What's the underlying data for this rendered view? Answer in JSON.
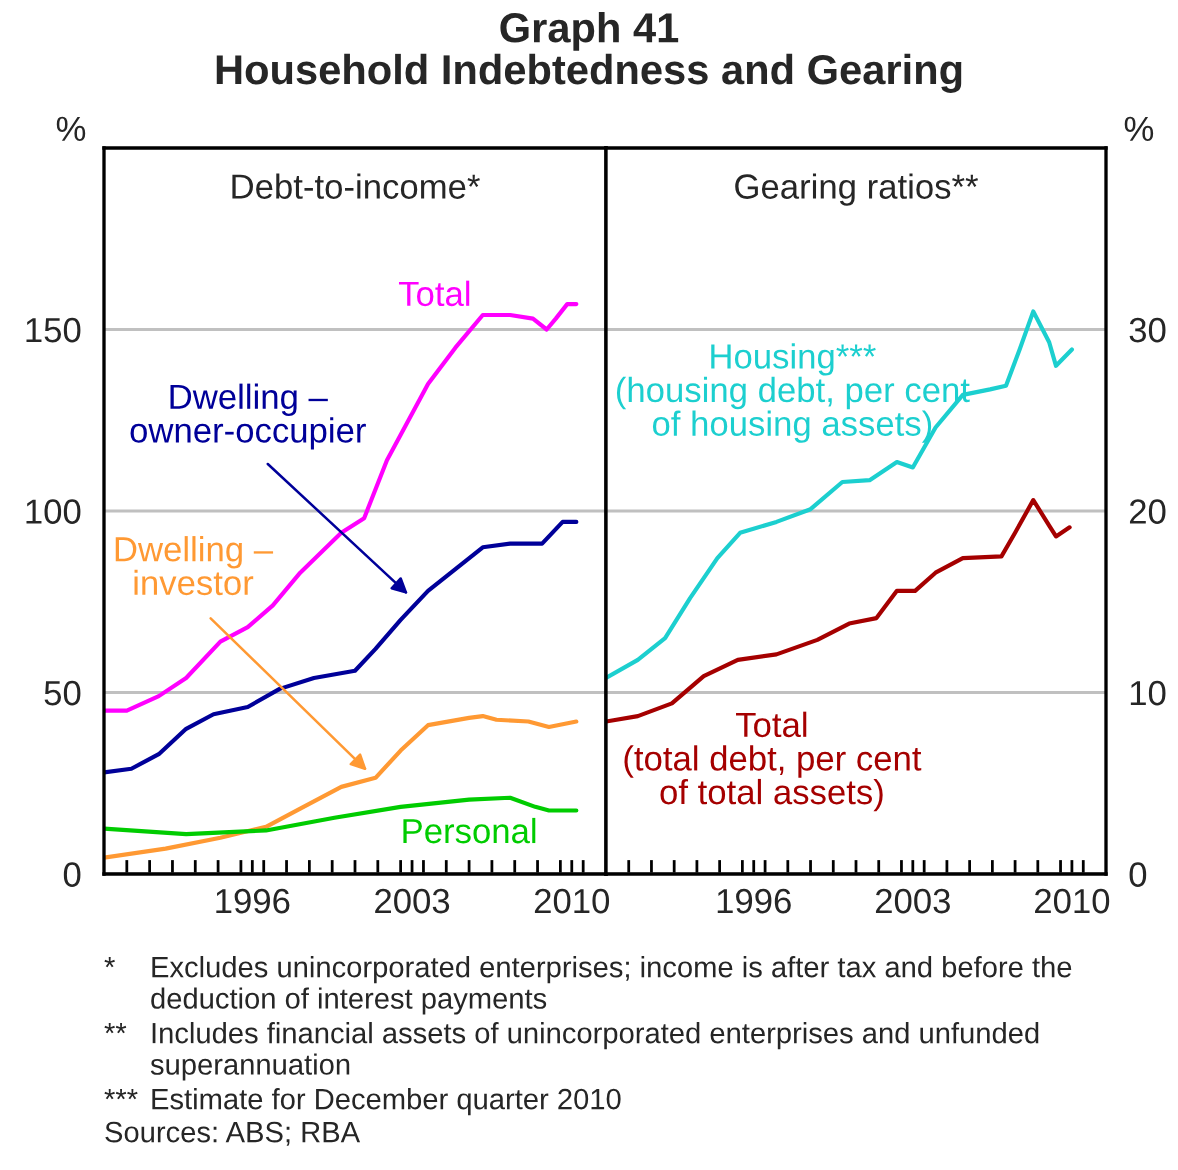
{
  "chart_data": [
    {
      "type": "line",
      "title": "Graph 41\nHousehold Indebtedness and Gearing",
      "subtitle": "Debt-to-income*",
      "ylabel": "%",
      "xlim": [
        1990,
        2012
      ],
      "ylim": [
        0,
        200
      ],
      "yticks": [
        0,
        50,
        100,
        150
      ],
      "xticks": [
        {
          "value": 1991,
          "label": null
        },
        {
          "value": 1992,
          "label": null
        },
        {
          "value": 1993,
          "label": null
        },
        {
          "value": 1994,
          "label": null
        },
        {
          "value": 1995,
          "label": null
        },
        {
          "value": 1996,
          "label": null
        },
        {
          "value": 1997,
          "label": null
        },
        {
          "value": 1998,
          "label": null
        },
        {
          "value": 1999,
          "label": null
        },
        {
          "value": 2000,
          "label": null
        },
        {
          "value": 2001,
          "label": null
        },
        {
          "value": 2002,
          "label": null
        },
        {
          "value": 2003,
          "label": null
        },
        {
          "value": 2004,
          "label": null
        },
        {
          "value": 2005,
          "label": null
        },
        {
          "value": 2006,
          "label": null
        },
        {
          "value": 2007,
          "label": null
        },
        {
          "value": 2008,
          "label": null
        },
        {
          "value": 2009,
          "label": null
        },
        {
          "value": 2010,
          "label": null
        },
        {
          "value": 2011,
          "label": null
        },
        {
          "value": 1996.5,
          "label": "1996"
        },
        {
          "value": 2003.5,
          "label": "2003"
        },
        {
          "value": 2010.5,
          "label": "2010"
        }
      ],
      "grid": "y",
      "legend": false,
      "marker": "none",
      "line_style": "solid",
      "series": [
        {
          "name": "Total",
          "color": "#ff00ff",
          "x": [
            1990.0,
            1991.0,
            1992.4,
            1993.6,
            1995.1,
            1996.3,
            1997.4,
            1998.6,
            2000.4,
            2001.4,
            2002.4,
            2004.2,
            2005.4,
            2006.6,
            2007.8,
            2008.8,
            2009.4,
            2009.8,
            2010.3,
            2010.7
          ],
          "values": [
            45,
            45,
            49,
            54,
            64,
            68,
            74,
            83,
            94,
            98,
            114,
            135,
            145,
            154,
            154,
            153,
            150,
            153,
            157,
            157
          ]
        },
        {
          "name": "Dwelling –\nowner-occupier",
          "color": "#000099",
          "x": [
            1990.0,
            1991.2,
            1992.4,
            1993.6,
            1994.8,
            1996.3,
            1997.7,
            1999.2,
            2001.0,
            2001.9,
            2003.0,
            2004.2,
            2005.4,
            2006.6,
            2007.8,
            2008.8,
            2009.2,
            2010.1,
            2010.7
          ],
          "values": [
            28,
            29,
            33,
            40,
            44,
            46,
            51,
            54,
            56,
            62,
            70,
            78,
            84,
            90,
            91,
            91,
            91,
            97,
            97
          ]
        },
        {
          "name": "Dwelling –\ninvestor",
          "color": "#ff9933",
          "x": [
            1990.0,
            1992.7,
            1995.1,
            1997.1,
            1998.6,
            2000.4,
            2001.9,
            2003.0,
            2004.2,
            2006.0,
            2006.6,
            2007.2,
            2008.6,
            2009.5,
            2010.7
          ],
          "values": [
            4.5,
            7,
            10,
            13,
            18,
            24,
            26.5,
            34,
            41,
            43,
            43.5,
            42.5,
            42,
            40.5,
            42
          ]
        },
        {
          "name": "Personal",
          "color": "#00cc00",
          "x": [
            1990.0,
            1993.6,
            1997.1,
            2000.1,
            2003.0,
            2006.0,
            2007.8,
            2008.9,
            2009.5,
            2010.7
          ],
          "values": [
            12.5,
            11,
            12,
            15.5,
            18.5,
            20.5,
            21,
            18.5,
            17.5,
            17.5
          ]
        }
      ]
    },
    {
      "type": "line",
      "subtitle": "Gearing ratios**",
      "ylabel": "%",
      "xlim": [
        1990,
        2012
      ],
      "ylim": [
        0,
        40
      ],
      "yticks": [
        0,
        10,
        20,
        30
      ],
      "xticks": [
        {
          "value": 1991,
          "label": null
        },
        {
          "value": 1992,
          "label": null
        },
        {
          "value": 1993,
          "label": null
        },
        {
          "value": 1994,
          "label": null
        },
        {
          "value": 1995,
          "label": null
        },
        {
          "value": 1996,
          "label": null
        },
        {
          "value": 1997,
          "label": null
        },
        {
          "value": 1998,
          "label": null
        },
        {
          "value": 1999,
          "label": null
        },
        {
          "value": 2000,
          "label": null
        },
        {
          "value": 2001,
          "label": null
        },
        {
          "value": 2002,
          "label": null
        },
        {
          "value": 2003,
          "label": null
        },
        {
          "value": 2004,
          "label": null
        },
        {
          "value": 2005,
          "label": null
        },
        {
          "value": 2006,
          "label": null
        },
        {
          "value": 2007,
          "label": null
        },
        {
          "value": 2008,
          "label": null
        },
        {
          "value": 2009,
          "label": null
        },
        {
          "value": 2010,
          "label": null
        },
        {
          "value": 2011,
          "label": null
        },
        {
          "value": 1996.5,
          "label": "1996"
        },
        {
          "value": 2003.5,
          "label": "2003"
        },
        {
          "value": 2010.5,
          "label": "2010"
        }
      ],
      "grid": "y",
      "legend": false,
      "marker": "none",
      "line_style": "solid",
      "series": [
        {
          "name": "Housing***\n(housing debt, per cent\nof housing assets)",
          "color": "#1ccfcf",
          "x": [
            1990.0,
            1991.4,
            1992.6,
            1993.7,
            1994.9,
            1995.9,
            1997.5,
            1999.0,
            2000.4,
            2001.6,
            2002.8,
            2003.5,
            2004.5,
            2005.7,
            2006.9,
            2007.6,
            2008.2,
            2008.8,
            2009.5,
            2009.8,
            2010.5
          ],
          "values": [
            10.8,
            11.8,
            13,
            15.2,
            17.4,
            18.8,
            19.4,
            20.1,
            21.6,
            21.7,
            22.7,
            22.4,
            24.6,
            26.4,
            26.7,
            26.9,
            28.9,
            31,
            29.3,
            28,
            28.9
          ]
        },
        {
          "name": "Total\n(total debt, per cent\nof total assets)",
          "color": "#a50000",
          "x": [
            1990.0,
            1991.4,
            1992.9,
            1994.3,
            1995.8,
            1997.5,
            1999.3,
            2000.7,
            2001.9,
            2002.8,
            2003.6,
            2004.5,
            2005.7,
            2007.4,
            2008.0,
            2008.8,
            2009.5,
            2009.8,
            2010.4
          ],
          "values": [
            8.4,
            8.7,
            9.4,
            10.9,
            11.8,
            12.1,
            12.9,
            13.8,
            14.1,
            15.6,
            15.6,
            16.6,
            17.4,
            17.5,
            18.8,
            20.6,
            19.2,
            18.6,
            19.1
          ]
        }
      ],
      "annotations": [
        "* Excludes unincorporated enterprises; income is after tax and before the deduction of interest payments",
        "** Includes financial assets of unincorporated enterprises and unfunded superannuation",
        "*** Estimate for December quarter 2010",
        "Sources: ABS; RBA"
      ]
    }
  ]
}
